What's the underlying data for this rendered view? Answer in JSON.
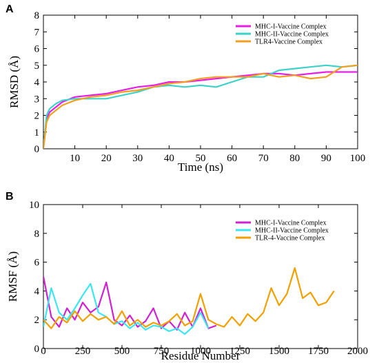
{
  "figure": {
    "panels": [
      "A",
      "B"
    ]
  },
  "chart_data": [
    {
      "panel": "A",
      "type": "line",
      "xlabel": "Time (ns)",
      "ylabel": "RMSD (Å)",
      "xlim": [
        0,
        100
      ],
      "ylim": [
        0,
        8
      ],
      "xticks": [
        10,
        20,
        30,
        40,
        50,
        60,
        70,
        80,
        90,
        100
      ],
      "yticks": [
        0,
        1,
        2,
        3,
        4,
        5,
        6,
        7,
        8
      ],
      "grid": false,
      "legend_position": "top-right",
      "series": [
        {
          "name": "MHC-I-Vaccine Complex",
          "color": "#e61ee6",
          "x": [
            0,
            1,
            2,
            4,
            6,
            10,
            15,
            20,
            25,
            30,
            35,
            40,
            45,
            50,
            55,
            60,
            65,
            70,
            75,
            80,
            85,
            90,
            95,
            100
          ],
          "y": [
            0,
            1.8,
            2.2,
            2.5,
            2.8,
            3.1,
            3.2,
            3.3,
            3.5,
            3.7,
            3.8,
            4.0,
            4.0,
            4.1,
            4.2,
            4.3,
            4.4,
            4.5,
            4.5,
            4.4,
            4.5,
            4.6,
            4.6,
            4.6
          ]
        },
        {
          "name": "MHC-II-Vaccine Complex",
          "color": "#3cd2c8",
          "x": [
            0,
            1,
            2,
            4,
            6,
            10,
            15,
            20,
            25,
            30,
            35,
            40,
            45,
            50,
            55,
            60,
            65,
            70,
            75,
            80,
            85,
            90,
            95,
            100
          ],
          "y": [
            0,
            2.0,
            2.4,
            2.7,
            2.9,
            3.0,
            3.0,
            3.0,
            3.2,
            3.4,
            3.7,
            3.8,
            3.7,
            3.8,
            3.7,
            4.0,
            4.3,
            4.3,
            4.7,
            4.8,
            4.9,
            5.0,
            4.9,
            5.0
          ]
        },
        {
          "name": "TLR4-Vaccine Complex",
          "color": "#f0a01e",
          "x": [
            0,
            1,
            2,
            4,
            6,
            10,
            15,
            20,
            25,
            30,
            35,
            40,
            45,
            50,
            55,
            60,
            65,
            70,
            75,
            80,
            85,
            90,
            95,
            100
          ],
          "y": [
            0,
            1.6,
            2.0,
            2.3,
            2.6,
            2.9,
            3.1,
            3.2,
            3.4,
            3.5,
            3.7,
            3.9,
            4.0,
            4.2,
            4.3,
            4.3,
            4.3,
            4.5,
            4.3,
            4.4,
            4.2,
            4.3,
            4.9,
            5.0
          ]
        }
      ]
    },
    {
      "panel": "B",
      "type": "line",
      "xlabel": "Residue Number",
      "ylabel": "RMSF (Å)",
      "xlim": [
        0,
        2000
      ],
      "ylim": [
        0,
        10
      ],
      "xticks": [
        0,
        250,
        500,
        750,
        1000,
        1250,
        1500,
        1750,
        2000
      ],
      "yticks": [
        0,
        2,
        4,
        6,
        8,
        10
      ],
      "grid": false,
      "legend_position": "top-right",
      "series": [
        {
          "name": "MHC-I-Vaccine Complex",
          "color": "#d020d0",
          "x": [
            0,
            50,
            100,
            150,
            200,
            250,
            300,
            350,
            400,
            450,
            500,
            550,
            600,
            650,
            700,
            750,
            800,
            850,
            900,
            950,
            1000,
            1050,
            1100
          ],
          "y": [
            5.0,
            2.2,
            1.5,
            2.8,
            2.0,
            3.2,
            2.5,
            2.9,
            4.6,
            2.0,
            1.6,
            2.3,
            1.5,
            1.9,
            2.8,
            1.4,
            1.9,
            1.3,
            2.5,
            1.5,
            2.8,
            1.4,
            1.6
          ]
        },
        {
          "name": "MHC-II-Vaccine Complex",
          "color": "#3ce6f0",
          "x": [
            0,
            50,
            100,
            150,
            200,
            250,
            300,
            350,
            400,
            450,
            500,
            550,
            600,
            650,
            700,
            750,
            800,
            850,
            900,
            950,
            1000,
            1050
          ],
          "y": [
            1.5,
            4.2,
            2.5,
            2.0,
            2.8,
            3.7,
            4.5,
            2.5,
            2.2,
            1.7,
            1.9,
            1.4,
            1.8,
            1.3,
            1.6,
            1.5,
            1.2,
            1.4,
            1.0,
            1.5,
            2.5,
            1.4
          ]
        },
        {
          "name": "TLR-4-Vaccine Complex",
          "color": "#f0a000",
          "x": [
            0,
            50,
            100,
            150,
            200,
            250,
            300,
            350,
            400,
            450,
            500,
            550,
            600,
            650,
            700,
            750,
            800,
            850,
            900,
            950,
            1000,
            1050,
            1100,
            1150,
            1200,
            1250,
            1300,
            1350,
            1400,
            1450,
            1500,
            1550,
            1600,
            1650,
            1700,
            1750,
            1800,
            1850
          ],
          "y": [
            2.0,
            1.4,
            2.2,
            1.8,
            2.6,
            1.9,
            2.4,
            2.0,
            2.2,
            1.7,
            2.6,
            1.6,
            2.0,
            1.5,
            1.8,
            1.6,
            1.9,
            2.4,
            1.6,
            1.9,
            3.8,
            2.0,
            1.7,
            1.5,
            2.2,
            1.6,
            2.4,
            1.9,
            2.5,
            4.2,
            3.0,
            3.8,
            5.6,
            3.5,
            3.9,
            3.0,
            3.2,
            4.0
          ]
        }
      ]
    }
  ]
}
